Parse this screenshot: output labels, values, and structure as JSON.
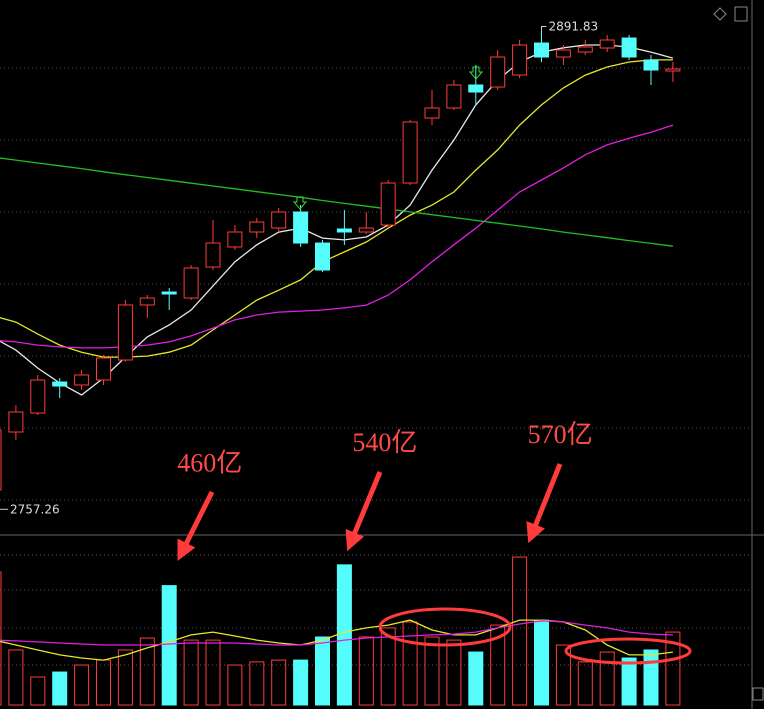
{
  "chart_data": [
    {
      "type": "candlestick",
      "up_color": "#ff3b3b",
      "down_color": "#54fcfc",
      "ylim": [
        2750,
        2901
      ],
      "open": [
        2762.7,
        2779.07,
        2784.43,
        2793.18,
        2792.34,
        2793.75,
        2799.39,
        2814.92,
        2818.58,
        2816.89,
        2825.64,
        2831.29,
        2835.52,
        2836.65,
        2841.16,
        2832.41,
        2836.37,
        2835.52,
        2837.49,
        2849.35,
        2867.69,
        2870.52,
        2877.01,
        2876.44,
        2879.83,
        2888.86,
        2884.91,
        2886.32,
        2887.45,
        2890.27,
        2884.06,
        2880.96
      ],
      "high": [
        2781.05,
        2786.69,
        2795.16,
        2794.31,
        2796.57,
        2800.8,
        2816.33,
        2817.74,
        2819.71,
        2826.2,
        2838.91,
        2837.49,
        2839.47,
        2842.29,
        2843.14,
        2833.26,
        2841.73,
        2841.16,
        2850.2,
        2867.13,
        2875.6,
        2878.42,
        2882.65,
        2886.89,
        2889.71,
        2891.83,
        2888.3,
        2889.71,
        2891.12,
        2891.12,
        2885.48,
        2883.5
      ],
      "low": [
        2757.26,
        2776.81,
        2783.87,
        2788.67,
        2790.92,
        2792.34,
        2798.83,
        2811.25,
        2813.5,
        2816.33,
        2824.79,
        2830.44,
        2833.83,
        2835.52,
        2831.29,
        2824.23,
        2831.85,
        2834.95,
        2836.65,
        2848.78,
        2865.72,
        2869.95,
        2871.65,
        2875.6,
        2878.98,
        2883.5,
        2882.65,
        2885.48,
        2886.32,
        2884.06,
        2877.01,
        2877.85
      ],
      "close": [
        2779.64,
        2784.72,
        2793.75,
        2792.05,
        2795.16,
        2799.96,
        2814.92,
        2816.89,
        2818.02,
        2825.36,
        2832.41,
        2835.52,
        2838.34,
        2841.16,
        2832.41,
        2824.79,
        2835.52,
        2836.65,
        2849.35,
        2866.57,
        2870.52,
        2877.01,
        2875.03,
        2884.91,
        2888.3,
        2884.91,
        2886.89,
        2887.73,
        2889.71,
        2884.91,
        2881.24,
        2881.52
      ],
      "series": [
        {
          "color": "#e8e8e8",
          "values": [
            2805.6,
            2802.2,
            2797.1,
            2792.9,
            2789.5,
            2794.3,
            2800.2,
            2805.9,
            2809.3,
            2813.5,
            2820.3,
            2827.1,
            2831.9,
            2835.5,
            2836.6,
            2833.8,
            2833.3,
            2834.1,
            2837.5,
            2843.1,
            2853.0,
            2861.5,
            2871.4,
            2878.4,
            2883.5,
            2886.3,
            2887.5,
            2888.3,
            2888.3,
            2887.7,
            2886.3,
            2884.6
          ]
        },
        {
          "color": "#e6e62a",
          "values": [
            2811.8,
            2810.1,
            2806.7,
            2803.6,
            2801.6,
            2800.2,
            2800.2,
            2800.5,
            2801.6,
            2803.6,
            2807.9,
            2812.1,
            2816.3,
            2819.1,
            2822.0,
            2827.1,
            2829.9,
            2832.7,
            2836.6,
            2840.3,
            2843.1,
            2846.8,
            2853.0,
            2858.7,
            2865.7,
            2871.4,
            2876.2,
            2879.8,
            2882.1,
            2883.5,
            2884.1,
            2884.1
          ]
        },
        {
          "color": "#e020e0",
          "values": [
            2805.0,
            2804.5,
            2803.6,
            2803.1,
            2802.8,
            2802.8,
            2803.1,
            2803.6,
            2804.5,
            2806.2,
            2808.4,
            2810.7,
            2812.1,
            2812.9,
            2813.2,
            2813.5,
            2814.1,
            2814.9,
            2817.7,
            2822.0,
            2827.1,
            2831.9,
            2836.6,
            2841.7,
            2846.8,
            2850.2,
            2853.6,
            2857.3,
            2860.1,
            2862.0,
            2863.7,
            2865.7
          ]
        },
        {
          "color": "#20c020",
          "values": [
            2856.6,
            2855.8,
            2855.0,
            2854.2,
            2853.4,
            2852.5,
            2851.7,
            2850.9,
            2850.1,
            2849.3,
            2848.5,
            2847.7,
            2846.9,
            2846.1,
            2845.3,
            2844.4,
            2843.6,
            2842.8,
            2842.0,
            2841.2,
            2840.4,
            2839.6,
            2838.8,
            2838.0,
            2837.2,
            2836.4,
            2835.5,
            2834.7,
            2833.9,
            2833.1,
            2832.3,
            2831.5
          ]
        }
      ]
    },
    {
      "type": "bar",
      "ylim": [
        0,
        655
      ],
      "values": [
        512,
        212,
        108,
        127,
        154,
        173,
        212,
        258,
        460,
        250,
        250,
        154,
        166,
        173,
        173,
        262,
        540,
        262,
        297,
        320,
        262,
        250,
        204,
        308,
        570,
        327,
        231,
        166,
        204,
        181,
        212,
        281
      ],
      "value_labels": [
        null,
        null,
        null,
        null,
        null,
        null,
        null,
        null,
        "460亿",
        null,
        null,
        null,
        null,
        null,
        null,
        null,
        "540亿",
        null,
        null,
        null,
        null,
        null,
        null,
        null,
        "570亿",
        null,
        null,
        null,
        null,
        null,
        null,
        null
      ],
      "series": [
        {
          "color": "#e6e62a",
          "values": [
            250,
            231,
            212,
            193,
            181,
            173,
            193,
            220,
            243,
            270,
            281,
            266,
            250,
            239,
            231,
            250,
            281,
            297,
            308,
            327,
            289,
            270,
            270,
            297,
            327,
            327,
            320,
            289,
            231,
            193,
            193,
            204
          ]
        },
        {
          "color": "#e020e0",
          "values": [
            250,
            247,
            243,
            239,
            235,
            231,
            231,
            231,
            235,
            239,
            239,
            239,
            235,
            231,
            231,
            239,
            250,
            258,
            262,
            266,
            270,
            273,
            281,
            297,
            312,
            324,
            320,
            308,
            297,
            281,
            273,
            270
          ]
        }
      ]
    }
  ]
}
